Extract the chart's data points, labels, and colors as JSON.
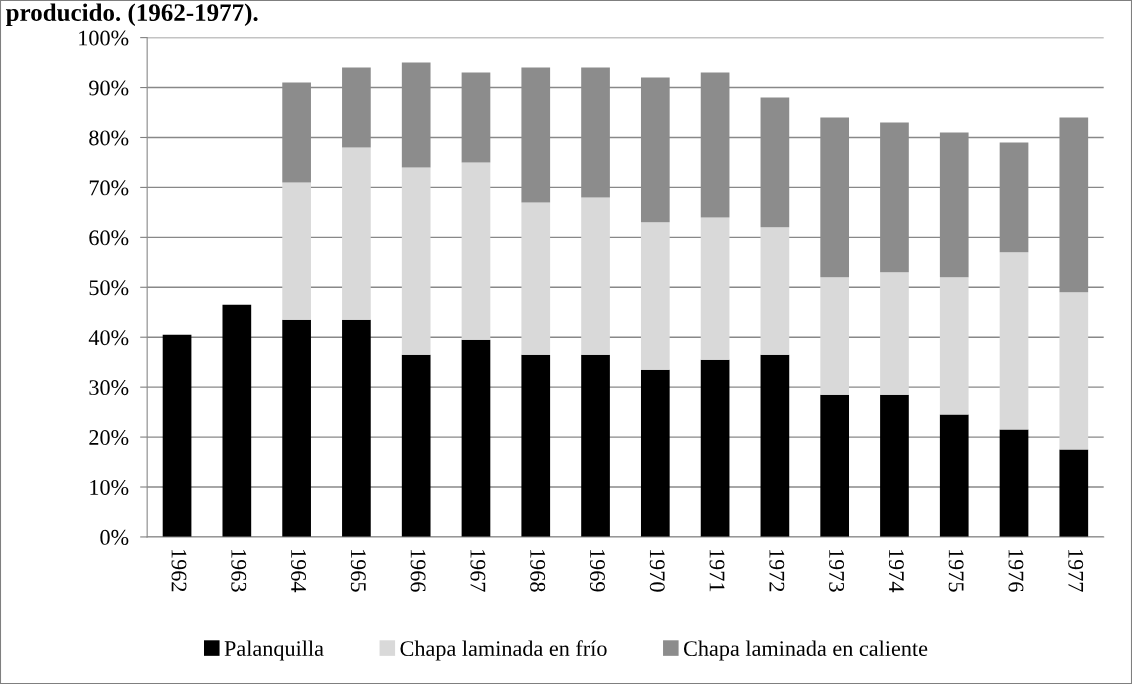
{
  "chart_data": {
    "type": "bar",
    "stacked": true,
    "title": "producido. (1962-1977).",
    "categories": [
      "1962",
      "1963",
      "1964",
      "1965",
      "1966",
      "1967",
      "1968",
      "1969",
      "1970",
      "1971",
      "1972",
      "1973",
      "1974",
      "1975",
      "1976",
      "1977"
    ],
    "series": [
      {
        "name": "Palanquilla",
        "color": "#000000",
        "values": [
          40.5,
          46.5,
          43.5,
          43.5,
          36.5,
          39.5,
          36.5,
          36.5,
          33.5,
          35.5,
          36.5,
          28.5,
          28.5,
          24.5,
          21.5,
          17.5
        ]
      },
      {
        "name": "Chapa laminada en frío",
        "color": "#d9d9d9",
        "values": [
          null,
          null,
          27.5,
          34.5,
          37.5,
          35.5,
          30.5,
          31.5,
          29.5,
          28.5,
          25.5,
          23.5,
          24.5,
          27.5,
          35.5,
          31.5
        ]
      },
      {
        "name": "Chapa laminada en caliente",
        "color": "#8c8c8c",
        "values": [
          null,
          null,
          20,
          16,
          21,
          18,
          27,
          26,
          29,
          29,
          26,
          32,
          30,
          29,
          22,
          35
        ]
      }
    ],
    "ylim": [
      0,
      100
    ],
    "yticks": [
      {
        "value": 0,
        "label": "0%"
      },
      {
        "value": 10,
        "label": "10%"
      },
      {
        "value": 20,
        "label": "20%"
      },
      {
        "value": 30,
        "label": "30%"
      },
      {
        "value": 40,
        "label": "40%"
      },
      {
        "value": 50,
        "label": "50%"
      },
      {
        "value": 60,
        "label": "60%"
      },
      {
        "value": 70,
        "label": "70%"
      },
      {
        "value": 80,
        "label": "80%"
      },
      {
        "value": 90,
        "label": "90%"
      },
      {
        "value": 100,
        "label": "100%"
      }
    ],
    "grid": "y",
    "legend": "bottom"
  }
}
